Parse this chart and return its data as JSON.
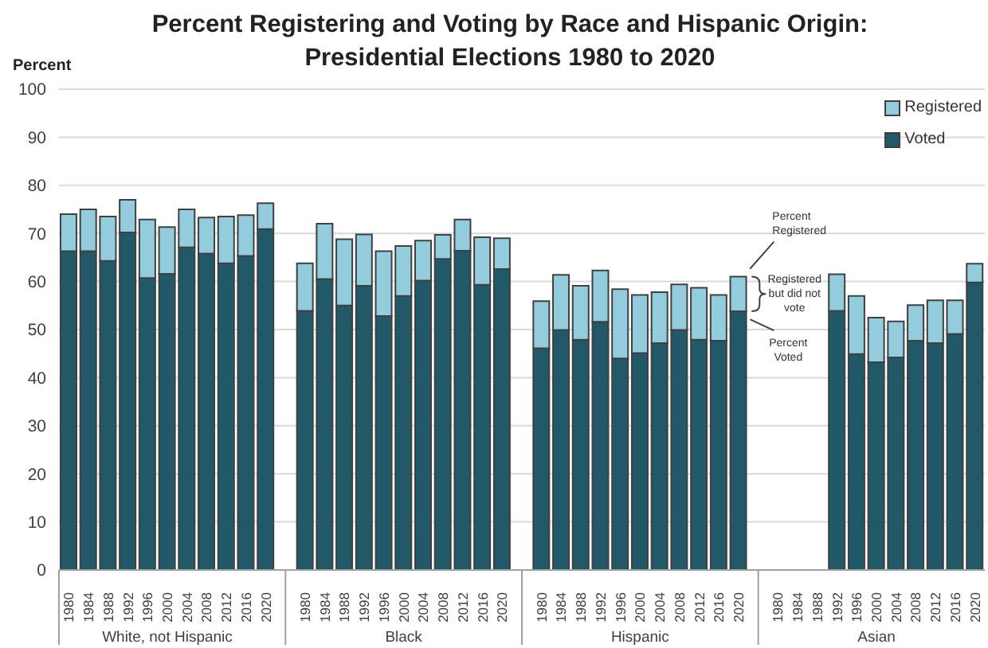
{
  "chart_data": {
    "type": "bar",
    "title": "Percent Registering and Voting by Race and Hispanic Origin: Presidential Elections 1980 to 2020",
    "ylabel": "Percent",
    "categories": [
      "1980",
      "1984",
      "1988",
      "1992",
      "1996",
      "2000",
      "2004",
      "2008",
      "2012",
      "2016",
      "2020",
      null,
      "1980",
      "1984",
      "1988",
      "1992",
      "1996",
      "2000",
      "2004",
      "2008",
      "2012",
      "2016",
      "2020",
      null,
      "1980",
      "1984",
      "1988",
      "1992",
      "1996",
      "2000",
      "2004",
      "2008",
      "2012",
      "2016",
      "2020",
      null,
      "1980",
      "1984",
      "1988",
      "1992",
      "1996",
      "2000",
      "2004",
      "2008",
      "2012",
      "2016",
      "2020"
    ],
    "series": [
      {
        "name": "Voted",
        "color": "#215968",
        "values": [
          66.3,
          66.3,
          64.3,
          70.2,
          60.7,
          61.6,
          67.1,
          65.8,
          63.8,
          65.3,
          70.9,
          null,
          53.9,
          60.5,
          55.0,
          59.1,
          52.8,
          57.0,
          60.2,
          64.7,
          66.4,
          59.3,
          62.6,
          null,
          46.1,
          49.9,
          47.9,
          51.6,
          44.0,
          45.1,
          47.2,
          49.9,
          47.9,
          47.7,
          53.8,
          null,
          null,
          null,
          null,
          53.9,
          44.9,
          43.2,
          44.2,
          47.7,
          47.2,
          49.1,
          59.8
        ]
      },
      {
        "name": "Registered",
        "color": "#93cddd",
        "values": [
          7.7,
          8.7,
          9.2,
          6.8,
          12.2,
          9.7,
          7.9,
          7.5,
          9.7,
          8.5,
          5.4,
          null,
          9.9,
          11.5,
          13.8,
          10.7,
          13.5,
          10.4,
          8.3,
          5.0,
          6.5,
          9.9,
          6.4,
          null,
          9.8,
          11.5,
          11.2,
          10.7,
          14.4,
          12.1,
          10.6,
          9.5,
          10.8,
          9.5,
          7.2,
          null,
          null,
          null,
          null,
          7.6,
          12.1,
          9.3,
          7.5,
          7.4,
          8.9,
          7.0,
          3.9
        ]
      }
    ],
    "stacked": true,
    "ylim": [
      0,
      100
    ],
    "yticks": [
      0,
      10,
      20,
      30,
      40,
      50,
      60,
      70,
      80,
      90,
      100
    ],
    "grid": "y",
    "legend": "top right",
    "annotations": [
      "White, not Hispanic",
      "Black",
      "Hispanic",
      "Asian",
      "Percent Registered",
      "Registered but did not vote",
      "Percent Voted"
    ]
  }
}
